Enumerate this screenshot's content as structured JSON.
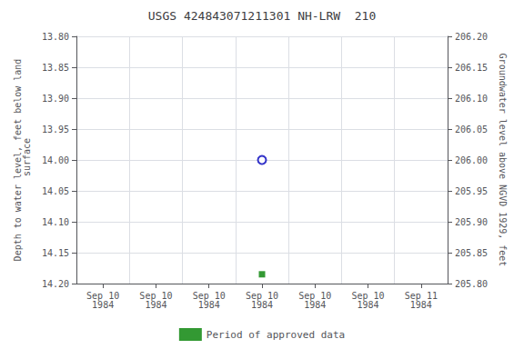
{
  "chart_data": {
    "type": "scatter",
    "title": "USGS 424843071211301 NH-LRW  210",
    "ylabel": "Depth to water level, feet below land\n surface",
    "y2label": "Groundwater level above NGVD 1929, feet",
    "categories": [
      "Sep 10\n1984",
      "Sep 10\n1984",
      "Sep 10\n1984",
      "Sep 10\n1984",
      "Sep 10\n1984",
      "Sep 10\n1984",
      "Sep 11\n1984"
    ],
    "series": [
      {
        "color": "#0000bb",
        "marker": "open_circle",
        "values": [
          null,
          null,
          null,
          14.0,
          null,
          null,
          null
        ]
      },
      {
        "name": "Period of approved data",
        "color": "#008000",
        "marker": "square",
        "values": [
          null,
          null,
          null,
          14.185,
          null,
          null,
          null
        ]
      }
    ],
    "ylim": [
      14.2,
      13.8
    ],
    "yticks": [
      {
        "value": 13.8,
        "label": "13.80"
      },
      {
        "value": 13.85,
        "label": "13.85"
      },
      {
        "value": 13.9,
        "label": "13.90"
      },
      {
        "value": 13.95,
        "label": "13.95"
      },
      {
        "value": 14.0,
        "label": "14.00"
      },
      {
        "value": 14.05,
        "label": "14.05"
      },
      {
        "value": 14.1,
        "label": "14.10"
      },
      {
        "value": 14.15,
        "label": "14.15"
      },
      {
        "value": 14.2,
        "label": "14.20"
      }
    ],
    "y2lim": [
      205.8,
      206.2
    ],
    "y2ticks": [
      {
        "value": 206.2,
        "label": "206.20"
      },
      {
        "value": 206.15,
        "label": "206.15"
      },
      {
        "value": 206.1,
        "label": "206.10"
      },
      {
        "value": 206.05,
        "label": "206.05"
      },
      {
        "value": 206.0,
        "label": "206.00"
      },
      {
        "value": 205.95,
        "label": "205.95"
      },
      {
        "value": 205.9,
        "label": "205.90"
      },
      {
        "value": 205.85,
        "label": "205.85"
      },
      {
        "value": 205.8,
        "label": "205.80"
      }
    ],
    "grid": true,
    "legend": "bottom"
  }
}
